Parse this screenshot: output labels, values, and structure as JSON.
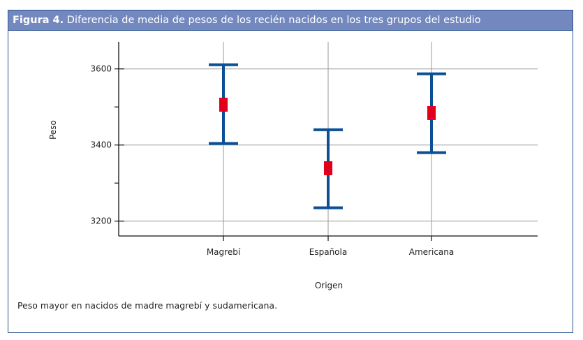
{
  "figure": {
    "label": "Figura 4.",
    "title": "Diferencia de media de pesos de los recién nacidos en los tres grupos del estudio",
    "note": "Peso mayor en nacidos de madre magrebí y sudamericana."
  },
  "chart_data": {
    "type": "errorbar",
    "xlabel": "Origen",
    "ylabel": "Peso",
    "categories": [
      "Magrebí",
      "Española",
      "Americana"
    ],
    "mean": [
      3506,
      3339,
      3484
    ],
    "upper": [
      3611,
      3440,
      3587
    ],
    "lower": [
      3404,
      3235,
      3380
    ],
    "yticks": [
      3200,
      3400,
      3600
    ],
    "ylim": [
      3161,
      3671
    ],
    "grid": true,
    "colors": {
      "errorbar": "#0b4f95",
      "mean": "#e0001b",
      "header": "#7488c0"
    }
  }
}
